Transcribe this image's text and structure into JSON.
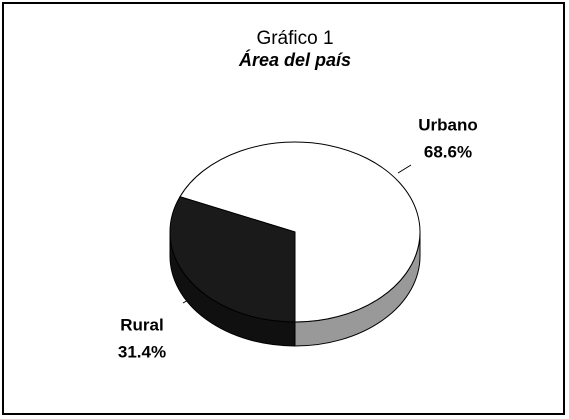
{
  "chart_data": {
    "type": "pie",
    "title": "Gráfico 1",
    "subtitle": "Área del país",
    "categories": [
      "Urbano",
      "Rural"
    ],
    "values": [
      68.6,
      31.4
    ],
    "value_labels": [
      "68.6%",
      "31.4%"
    ],
    "colors": [
      "#ffffff",
      "#1a1a1a"
    ]
  }
}
